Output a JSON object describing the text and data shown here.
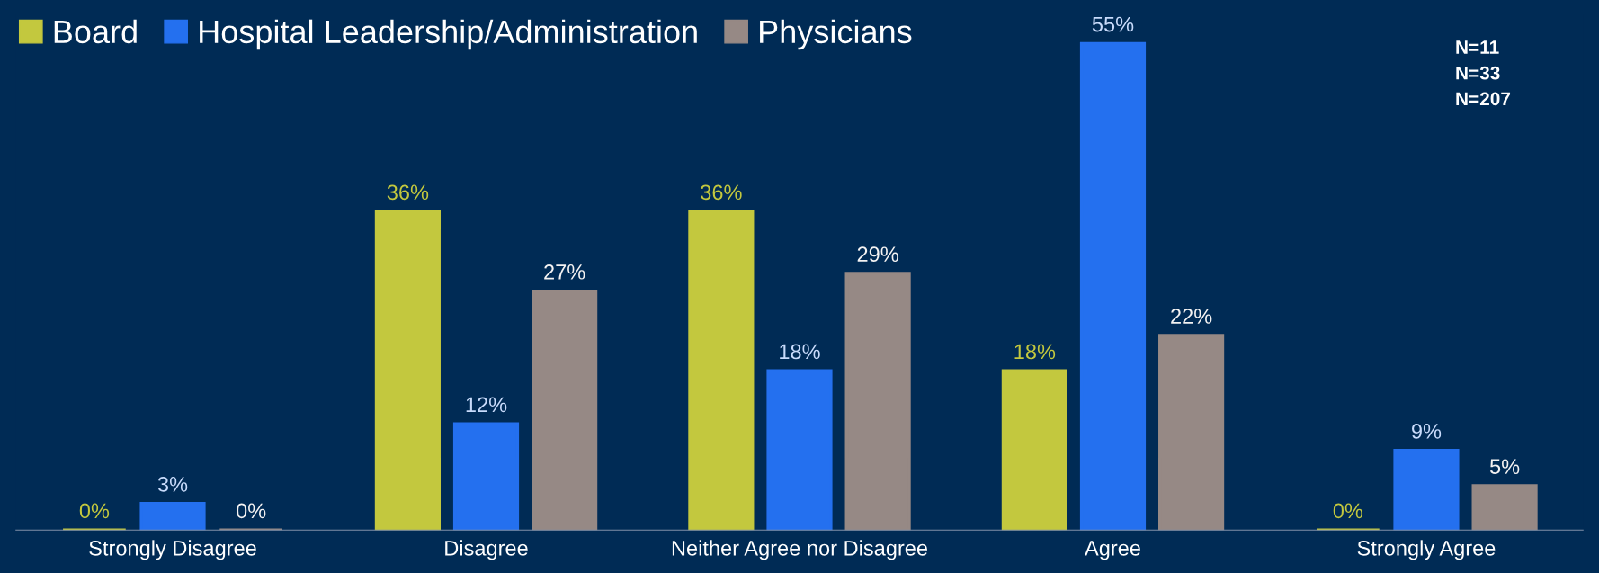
{
  "chart_data": {
    "type": "bar",
    "categories": [
      "Strongly Disagree",
      "Disagree",
      "Neither Agree nor Disagree",
      "Agree",
      "Strongly Agree"
    ],
    "series": [
      {
        "name": "Board",
        "color": "#c3c83e",
        "values": [
          0,
          36,
          36,
          18,
          0
        ],
        "value_labels": [
          "0%",
          "36%",
          "36%",
          "18%",
          "0%"
        ]
      },
      {
        "name": "Hospital Leadership/Administration",
        "color": "#2470ef",
        "values": [
          3,
          12,
          18,
          55,
          9
        ],
        "value_labels": [
          "3%",
          "12%",
          "18%",
          "55%",
          "9%"
        ]
      },
      {
        "name": "Physicians",
        "color": "#968985",
        "values": [
          0,
          27,
          29,
          22,
          5
        ],
        "value_labels": [
          "0%",
          "27%",
          "29%",
          "22%",
          "5%"
        ]
      }
    ],
    "legend": "top left",
    "grid": false,
    "annotations": [
      "N=11",
      "N=33",
      "N=207"
    ]
  }
}
